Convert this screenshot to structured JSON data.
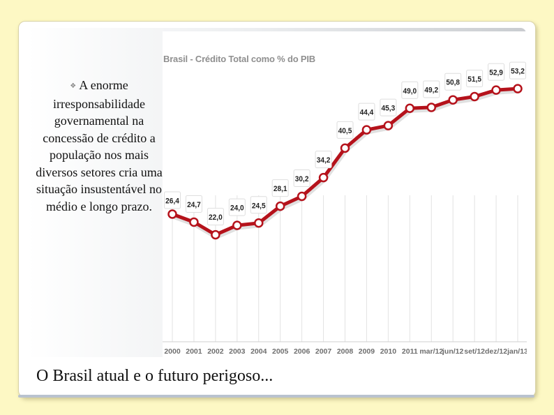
{
  "text_block": {
    "bullet_icon": "bullet-icon",
    "body": "A enorme irresponsabilidade governamental na concessão de crédito a população nos mais diversos setores cria uma situação insustentável no médio e longo prazo."
  },
  "footer": {
    "title": "O Brasil atual e o futuro perigoso..."
  },
  "colors": {
    "line": "#b5121b",
    "background": "#fdf8c4"
  },
  "chart_data": {
    "type": "line",
    "title": "Brasil - Crédito Total como % do PIB",
    "categories": [
      "2000",
      "2001",
      "2002",
      "2003",
      "2004",
      "2005",
      "2006",
      "2007",
      "2008",
      "2009",
      "2010",
      "2011",
      "mar/12",
      "jun/12",
      "set/12",
      "dez/12",
      "jan/13"
    ],
    "values": [
      26.4,
      24.7,
      22.0,
      24.0,
      24.5,
      28.1,
      30.2,
      34.2,
      40.5,
      44.4,
      45.3,
      49.0,
      49.2,
      50.8,
      51.5,
      52.9,
      53.2
    ],
    "data_labels": [
      "26,4",
      "24,7",
      "22,0",
      "24,0",
      "24,5",
      "28,1",
      "30,2",
      "34,2",
      "40,5",
      "44,4",
      "45,3",
      "49,0",
      "49,2",
      "50,8",
      "51,5",
      "52,9",
      "53,2"
    ],
    "xlabel": "",
    "ylabel": "",
    "grid": "vertical"
  }
}
